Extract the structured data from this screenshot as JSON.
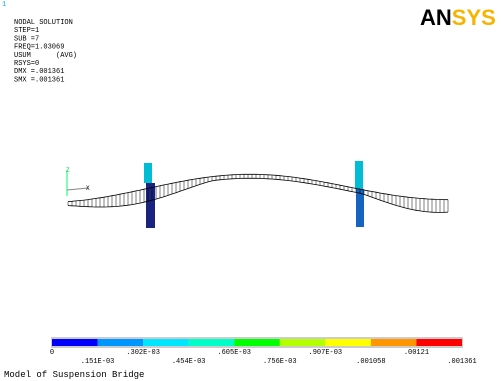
{
  "index": "1",
  "logo": {
    "part1": "AN",
    "part2": "SYS"
  },
  "info": [
    "NODAL SOLUTION",
    "STEP=1",
    "SUB =7",
    "FREQ=1.03069",
    "USUM      (AVG)",
    "RSYS=0",
    "DMX =.001361",
    "SMX =.001361"
  ],
  "triad": {
    "z": "Z",
    "x": "X"
  },
  "legend": {
    "colors": [
      "#0000ff",
      "#0096ff",
      "#00e6ff",
      "#00ffc8",
      "#00ff00",
      "#b4ff00",
      "#ffff00",
      "#ff9600",
      "#ff0000"
    ],
    "labels": [
      "0",
      ".151E-03",
      ".302E-03",
      ".454E-03",
      ".605E-03",
      ".756E-03",
      ".907E-03",
      ".001058",
      ".00121",
      ".001361"
    ]
  },
  "caption": "Model of Suspension Bridge"
}
